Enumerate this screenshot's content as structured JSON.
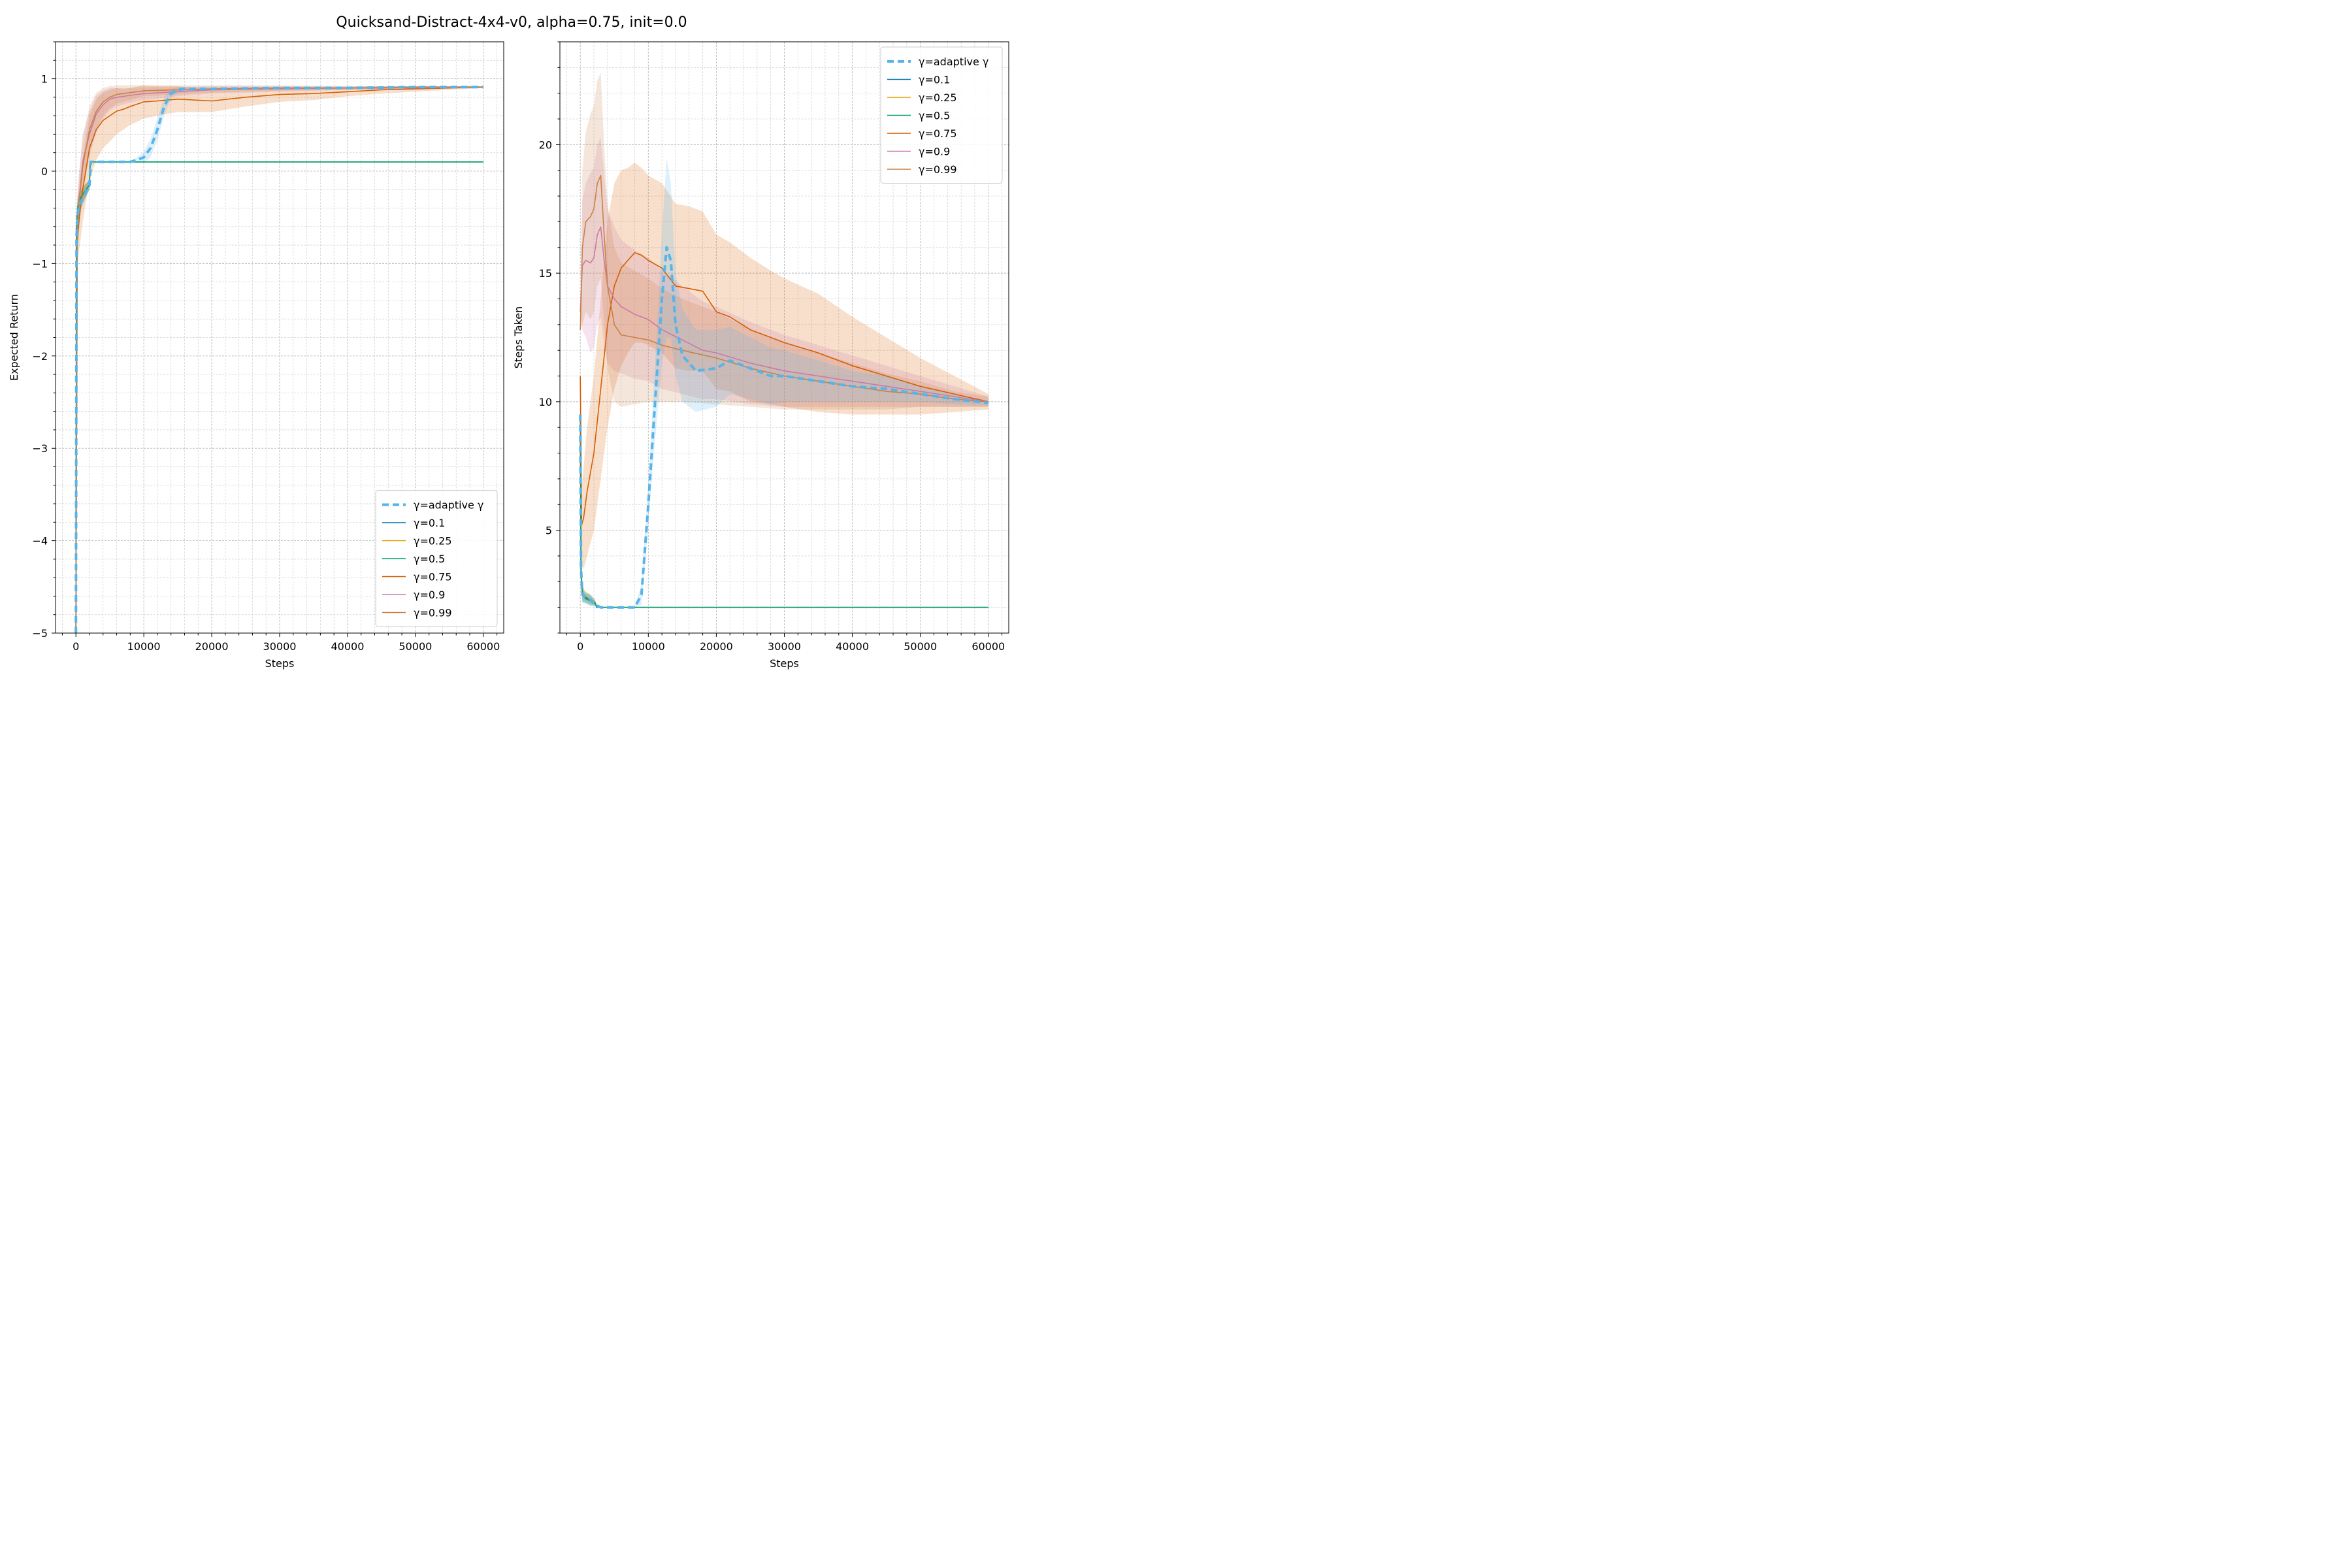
{
  "figure_title": "Quicksand-Distract-4x4-v0, alpha=0.75, init=0.0",
  "colors": {
    "adaptive": "#56B4E9",
    "g01": "#0072B2",
    "g025": "#E69F00",
    "g05": "#009E73",
    "g075": "#D55E00",
    "g09": "#CC79A7",
    "g099": "#C98146"
  },
  "chart_data": [
    {
      "type": "line",
      "title": "",
      "xlabel": "Steps",
      "ylabel": "Expected Return",
      "xlim": [
        -3000,
        63000
      ],
      "ylim": [
        -5,
        1.4
      ],
      "xticks": [
        0,
        10000,
        20000,
        30000,
        40000,
        50000,
        60000
      ],
      "yticks": [
        -5,
        -4,
        -3,
        -2,
        -1,
        0,
        1
      ],
      "ytick_labels": [
        "−5",
        "−4",
        "−3",
        "−2",
        "−1",
        "0",
        "1"
      ],
      "grid": true,
      "legend_position": "lower-right",
      "series": [
        {
          "name": "γ=adaptive γ",
          "color_key": "adaptive",
          "dashed": true,
          "x": [
            0,
            100,
            300,
            600,
            1000,
            1500,
            2000,
            2200,
            4000,
            6000,
            8000,
            9000,
            10000,
            11000,
            12000,
            13000,
            14000,
            15000,
            16000,
            20000,
            30000,
            40000,
            50000,
            60000
          ],
          "y": [
            -5,
            -0.7,
            -0.45,
            -0.35,
            -0.3,
            -0.22,
            -0.15,
            0.1,
            0.1,
            0.1,
            0.1,
            0.12,
            0.15,
            0.25,
            0.45,
            0.7,
            0.84,
            0.88,
            0.89,
            0.89,
            0.9,
            0.9,
            0.91,
            0.91
          ],
          "band": [
            0,
            0,
            0.1,
            0.1,
            0.08,
            0.06,
            0.05,
            0,
            0,
            0,
            0,
            0.03,
            0.06,
            0.1,
            0.12,
            0.1,
            0.05,
            0.03,
            0.02,
            0.02,
            0.01,
            0.01,
            0.01,
            0.01
          ]
        },
        {
          "name": "γ=0.1",
          "color_key": "g01",
          "dashed": false,
          "x": [
            0,
            100,
            300,
            600,
            1000,
            1500,
            2000,
            2100,
            60000
          ],
          "y": [
            -5,
            -0.6,
            -0.42,
            -0.32,
            -0.27,
            -0.2,
            -0.15,
            0.1,
            0.1
          ],
          "band": [
            0,
            0.15,
            0.12,
            0.1,
            0.08,
            0.07,
            0.05,
            0,
            0
          ]
        },
        {
          "name": "γ=0.25",
          "color_key": "g025",
          "dashed": false,
          "x": [
            0,
            100,
            300,
            600,
            1000,
            1500,
            2000,
            2100,
            60000
          ],
          "y": [
            -5,
            -0.62,
            -0.43,
            -0.33,
            -0.27,
            -0.2,
            -0.14,
            0.1,
            0.1
          ],
          "band": [
            0,
            0.15,
            0.12,
            0.1,
            0.08,
            0.07,
            0.05,
            0,
            0
          ]
        },
        {
          "name": "γ=0.5",
          "color_key": "g05",
          "dashed": false,
          "x": [
            0,
            100,
            300,
            600,
            1000,
            1500,
            2000,
            2100,
            60000
          ],
          "y": [
            -5,
            -0.55,
            -0.38,
            -0.3,
            -0.25,
            -0.2,
            -0.15,
            0.1,
            0.1
          ],
          "band": [
            0,
            0.15,
            0.12,
            0.1,
            0.08,
            0.07,
            0.05,
            0,
            0
          ]
        },
        {
          "name": "γ=0.75",
          "color_key": "g075",
          "dashed": false,
          "x": [
            0,
            200,
            500,
            1000,
            2000,
            3000,
            4000,
            5000,
            6000,
            7000,
            8000,
            10000,
            12000,
            15000,
            20000,
            25000,
            30000,
            35000,
            40000,
            45000,
            50000,
            55000,
            60000
          ],
          "y": [
            -5,
            -0.75,
            -0.5,
            -0.2,
            0.25,
            0.45,
            0.55,
            0.6,
            0.65,
            0.67,
            0.7,
            0.75,
            0.76,
            0.78,
            0.76,
            0.8,
            0.83,
            0.84,
            0.86,
            0.88,
            0.89,
            0.9,
            0.91
          ],
          "band": [
            0,
            0.3,
            0.35,
            0.35,
            0.35,
            0.33,
            0.3,
            0.28,
            0.25,
            0.22,
            0.2,
            0.18,
            0.16,
            0.14,
            0.12,
            0.1,
            0.08,
            0.07,
            0.05,
            0.04,
            0.03,
            0.02,
            0.01
          ]
        },
        {
          "name": "γ=0.9",
          "color_key": "g09",
          "dashed": false,
          "x": [
            0,
            200,
            500,
            1000,
            2000,
            3000,
            4000,
            5000,
            6000,
            8000,
            10000,
            15000,
            20000,
            30000,
            40000,
            50000,
            60000
          ],
          "y": [
            -5,
            -0.6,
            -0.3,
            0.1,
            0.4,
            0.62,
            0.72,
            0.78,
            0.8,
            0.82,
            0.84,
            0.86,
            0.88,
            0.89,
            0.9,
            0.9,
            0.91
          ],
          "band": [
            0,
            0.3,
            0.3,
            0.3,
            0.25,
            0.2,
            0.15,
            0.12,
            0.1,
            0.08,
            0.07,
            0.05,
            0.04,
            0.03,
            0.02,
            0.01,
            0.01
          ]
        },
        {
          "name": "γ=0.99",
          "color_key": "g099",
          "dashed": false,
          "x": [
            0,
            200,
            500,
            1000,
            2000,
            3000,
            4000,
            5000,
            6000,
            8000,
            10000,
            15000,
            20000,
            30000,
            40000,
            50000,
            60000
          ],
          "y": [
            -5,
            -0.6,
            -0.3,
            0.05,
            0.45,
            0.65,
            0.75,
            0.8,
            0.83,
            0.85,
            0.87,
            0.88,
            0.89,
            0.9,
            0.9,
            0.91,
            0.91
          ],
          "band": [
            0,
            0.3,
            0.3,
            0.3,
            0.25,
            0.2,
            0.15,
            0.12,
            0.1,
            0.08,
            0.06,
            0.05,
            0.04,
            0.03,
            0.02,
            0.01,
            0.01
          ]
        }
      ]
    },
    {
      "type": "line",
      "title": "",
      "xlabel": "Steps",
      "ylabel": "Steps Taken",
      "xlim": [
        -3000,
        63000
      ],
      "ylim": [
        1,
        24
      ],
      "xticks": [
        0,
        10000,
        20000,
        30000,
        40000,
        50000,
        60000
      ],
      "yticks": [
        5,
        10,
        15,
        20
      ],
      "ytick_labels": [
        "5",
        "10",
        "15",
        "20"
      ],
      "grid": true,
      "legend_position": "upper-right",
      "series": [
        {
          "name": "γ=adaptive γ",
          "color_key": "adaptive",
          "dashed": true,
          "x": [
            0,
            100,
            300,
            700,
            1500,
            2200,
            3000,
            5000,
            8000,
            9000,
            10000,
            11000,
            12000,
            12700,
            13300,
            14000,
            15000,
            17000,
            20000,
            22000,
            25000,
            28000,
            30000,
            35000,
            40000,
            45000,
            50000,
            55000,
            60000
          ],
          "y": [
            9.5,
            3.5,
            2.5,
            2.4,
            2.3,
            2.1,
            2.0,
            2.0,
            2.0,
            2.5,
            6.0,
            10.0,
            14.0,
            16.0,
            15.5,
            13.0,
            11.8,
            11.2,
            11.3,
            11.6,
            11.3,
            11.0,
            11.0,
            10.8,
            10.6,
            10.5,
            10.3,
            10.1,
            9.95
          ],
          "band": [
            0,
            0.4,
            0.3,
            0.2,
            0.2,
            0.1,
            0,
            0,
            0,
            0.4,
            0.8,
            1.5,
            2.5,
            3.5,
            3.0,
            2.0,
            1.8,
            1.6,
            1.5,
            1.3,
            1.2,
            1.1,
            1.0,
            0.8,
            0.6,
            0.5,
            0.3,
            0.2,
            0.1
          ]
        },
        {
          "name": "γ=0.1",
          "color_key": "g01",
          "dashed": false,
          "x": [
            0,
            100,
            300,
            700,
            1500,
            2200,
            2400,
            60000
          ],
          "y": [
            9.5,
            3.5,
            2.5,
            2.4,
            2.3,
            2.2,
            2.0,
            2.0
          ],
          "band": [
            0,
            0.4,
            0.3,
            0.2,
            0.2,
            0.1,
            0,
            0
          ]
        },
        {
          "name": "γ=0.25",
          "color_key": "g025",
          "dashed": false,
          "x": [
            0,
            100,
            300,
            700,
            1500,
            2200,
            2400,
            60000
          ],
          "y": [
            9.5,
            3.6,
            2.6,
            2.45,
            2.3,
            2.2,
            2.0,
            2.0
          ],
          "band": [
            0,
            0.4,
            0.3,
            0.2,
            0.2,
            0.1,
            0,
            0
          ]
        },
        {
          "name": "γ=0.5",
          "color_key": "g05",
          "dashed": false,
          "x": [
            0,
            100,
            300,
            700,
            1500,
            2200,
            2400,
            60000
          ],
          "y": [
            9.5,
            3.4,
            2.5,
            2.35,
            2.25,
            2.15,
            2.0,
            2.0
          ],
          "band": [
            0,
            0.4,
            0.3,
            0.2,
            0.2,
            0.1,
            0,
            0
          ]
        },
        {
          "name": "γ=0.75",
          "color_key": "g075",
          "dashed": false,
          "x": [
            0,
            200,
            500,
            1000,
            2000,
            3000,
            4000,
            5000,
            6000,
            7000,
            8000,
            9000,
            10000,
            12000,
            14000,
            16000,
            18000,
            20000,
            22000,
            25000,
            28000,
            30000,
            35000,
            40000,
            45000,
            50000,
            55000,
            60000
          ],
          "y": [
            11,
            5.2,
            5.5,
            6.5,
            8.0,
            10.5,
            13.0,
            14.5,
            15.2,
            15.5,
            15.8,
            15.7,
            15.5,
            15.2,
            14.5,
            14.4,
            14.3,
            13.5,
            13.3,
            12.8,
            12.5,
            12.3,
            11.9,
            11.4,
            11.0,
            10.6,
            10.3,
            10.0
          ],
          "band": [
            0,
            1.5,
            2.0,
            2.5,
            3.0,
            3.5,
            4.0,
            4.0,
            3.8,
            3.6,
            3.5,
            3.4,
            3.3,
            3.3,
            3.2,
            3.2,
            3.1,
            3.0,
            2.9,
            2.8,
            2.6,
            2.5,
            2.3,
            1.9,
            1.5,
            1.1,
            0.7,
            0.3
          ]
        },
        {
          "name": "γ=0.9",
          "color_key": "g09",
          "dashed": false,
          "x": [
            0,
            300,
            800,
            1500,
            2000,
            2500,
            3000,
            3500,
            4000,
            5000,
            6000,
            8000,
            10000,
            12000,
            15000,
            18000,
            20000,
            25000,
            30000,
            35000,
            40000,
            45000,
            50000,
            55000,
            60000
          ],
          "y": [
            13.5,
            15.3,
            15.5,
            15.4,
            15.6,
            16.5,
            16.8,
            15.5,
            14.5,
            14.0,
            13.7,
            13.4,
            13.2,
            12.8,
            12.4,
            12.0,
            11.9,
            11.5,
            11.2,
            11.0,
            10.8,
            10.6,
            10.4,
            10.2,
            10.0
          ],
          "band": [
            0,
            2.5,
            3.0,
            3.5,
            3.5,
            3.5,
            3.5,
            3.3,
            3.0,
            2.8,
            2.6,
            2.5,
            2.4,
            2.3,
            2.1,
            1.9,
            1.8,
            1.6,
            1.4,
            1.2,
            1.0,
            0.8,
            0.6,
            0.4,
            0.2
          ]
        },
        {
          "name": "γ=0.99",
          "color_key": "g099",
          "dashed": false,
          "x": [
            0,
            300,
            800,
            1500,
            2000,
            2500,
            3000,
            3500,
            4000,
            5000,
            6000,
            8000,
            10000,
            12000,
            15000,
            20000,
            25000,
            30000,
            35000,
            40000,
            45000,
            50000,
            55000,
            60000
          ],
          "y": [
            12.8,
            16.0,
            17.0,
            17.2,
            17.5,
            18.5,
            18.8,
            16.5,
            14.5,
            13.0,
            12.6,
            12.5,
            12.4,
            12.2,
            12.0,
            11.7,
            11.3,
            11.0,
            10.8,
            10.6,
            10.4,
            10.3,
            10.1,
            10.0
          ],
          "band": [
            0,
            3.0,
            3.5,
            4.0,
            4.0,
            4.0,
            4.0,
            3.5,
            3.2,
            3.0,
            2.8,
            2.6,
            2.4,
            2.2,
            2.0,
            1.8,
            1.5,
            1.3,
            1.1,
            0.9,
            0.7,
            0.5,
            0.3,
            0.2
          ]
        }
      ]
    }
  ]
}
